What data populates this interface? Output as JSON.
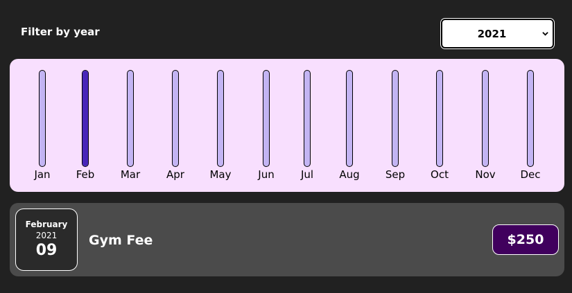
{
  "filter": {
    "label": "Filter by year",
    "selected_year": "2021"
  },
  "chart": {
    "bars": [
      {
        "label": "Jan",
        "fill": 0
      },
      {
        "label": "Feb",
        "fill": 1
      },
      {
        "label": "Mar",
        "fill": 0
      },
      {
        "label": "Apr",
        "fill": 0
      },
      {
        "label": "May",
        "fill": 0
      },
      {
        "label": "Jun",
        "fill": 0
      },
      {
        "label": "Jul",
        "fill": 0
      },
      {
        "label": "Aug",
        "fill": 0
      },
      {
        "label": "Sep",
        "fill": 0
      },
      {
        "label": "Oct",
        "fill": 0
      },
      {
        "label": "Nov",
        "fill": 0
      },
      {
        "label": "Dec",
        "fill": 0
      }
    ]
  },
  "expenses": [
    {
      "month": "February",
      "year": "2021",
      "day": "09",
      "title": "Gym Fee",
      "amount": "$250"
    }
  ],
  "colors": {
    "background": "#212121",
    "chart_panel": "#f8dffe",
    "bar_track": "#c3b4f3",
    "bar_fill": "#4826b9",
    "expense_panel": "#4b4b4b",
    "price_badge": "#40005d"
  }
}
